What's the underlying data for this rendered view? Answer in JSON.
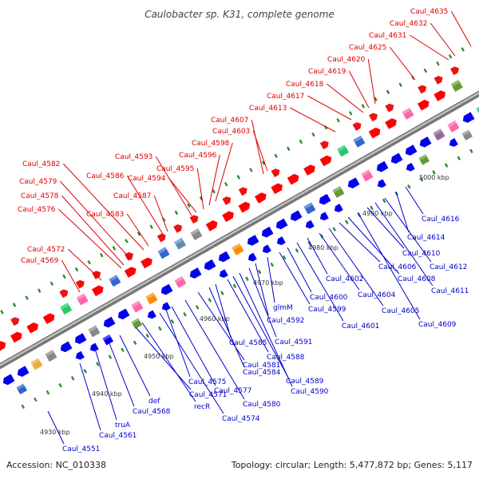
{
  "title": "Caulobacter sp. K31, complete genome",
  "footer": {
    "accession": "Accession: NC_010338",
    "summary": "Topology: circular; Length: 5,477,872 bp; Genes: 5,117"
  },
  "colors": {
    "forward_label": "#dd0000",
    "reverse_label": "#0000cc",
    "forward_feature": "#ff0000",
    "reverse_feature": "#0000ee",
    "backbone": "#999999"
  },
  "kbp_ticks": [
    "4930 kbp",
    "4940 kbp",
    "4950 kbp",
    "4960 kbp",
    "4970 kbp",
    "4980 kbp",
    "4990 kbp",
    "5000 kbp"
  ],
  "forward_labels": [
    "Caul_4569",
    "Caul_4572",
    "Caul_4576",
    "Caul_4578",
    "Caul_4579",
    "Caul_4582",
    "Caul_4583",
    "Caul_4586",
    "Caul_4587",
    "Caul_4593",
    "Caul_4594",
    "Caul_4595",
    "Caul_4596",
    "Caul_4598",
    "Caul_4603",
    "Caul_4607",
    "Caul_4613",
    "Caul_4617",
    "Caul_4618",
    "Caul_4619",
    "Caul_4620",
    "Caul_4625",
    "Caul_4631",
    "Caul_4632",
    "Caul_4635"
  ],
  "reverse_labels": [
    "Caul_4551",
    "Caul_4561",
    "truA",
    "Caul_4568",
    "def",
    "Caul_4571",
    "recR",
    "Caul_4574",
    "Caul_4575",
    "Caul_4577",
    "Caul_4580",
    "Caul_4581",
    "Caul_4584",
    "Caul_4585",
    "Caul_4588",
    "Caul_4589",
    "Caul_4590",
    "Caul_4591",
    "Caul_4592",
    "glmM",
    "Caul_4599",
    "Caul_4600",
    "Caul_4601",
    "Caul_4602",
    "Caul_4604",
    "Caul_4605",
    "Caul_4606",
    "Caul_4608",
    "Caul_4609",
    "Caul_4610",
    "Caul_4611",
    "Caul_4612",
    "Caul_4614",
    "Caul_4616"
  ]
}
